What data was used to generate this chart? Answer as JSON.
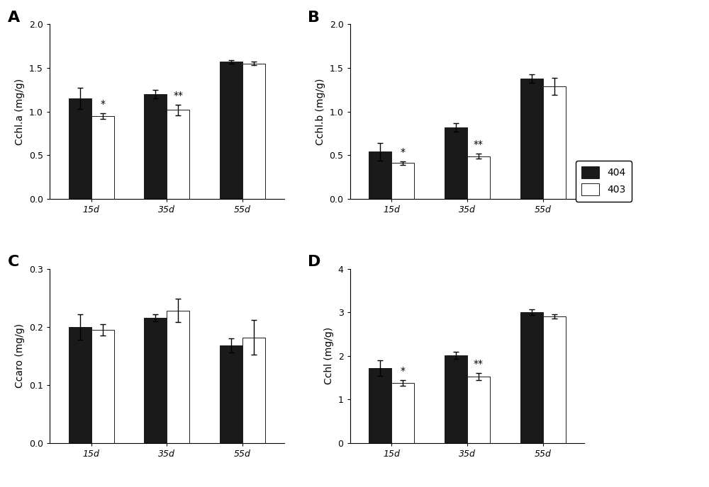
{
  "panels": [
    {
      "label": "A",
      "ylabel": "Cchl.a (mg/g)",
      "ylim": [
        0,
        2.0
      ],
      "yticks": [
        0.0,
        0.5,
        1.0,
        1.5,
        2.0
      ],
      "ytick_labels": [
        "0.0",
        "0.5",
        "1.0",
        "1.5",
        "2.0"
      ],
      "categories": [
        "15d",
        "35d",
        "55d"
      ],
      "dark_values": [
        1.15,
        1.2,
        1.57
      ],
      "dark_errors": [
        0.12,
        0.05,
        0.02
      ],
      "light_values": [
        0.95,
        1.02,
        1.55
      ],
      "light_errors": [
        0.03,
        0.06,
        0.02
      ],
      "significance": [
        "*",
        "**",
        ""
      ]
    },
    {
      "label": "B",
      "ylabel": "Cchl.b (mg/g)",
      "ylim": [
        0,
        2.0
      ],
      "yticks": [
        0.0,
        0.5,
        1.0,
        1.5,
        2.0
      ],
      "ytick_labels": [
        "0.0",
        "0.5",
        "1.0",
        "1.5",
        "2.0"
      ],
      "categories": [
        "15d",
        "35d",
        "55d"
      ],
      "dark_values": [
        0.54,
        0.82,
        1.38
      ],
      "dark_errors": [
        0.1,
        0.05,
        0.05
      ],
      "light_values": [
        0.41,
        0.49,
        1.29
      ],
      "light_errors": [
        0.02,
        0.03,
        0.1
      ],
      "significance": [
        "*",
        "**",
        ""
      ]
    },
    {
      "label": "C",
      "ylabel": "Ccaro (mg/g)",
      "ylim": [
        0,
        0.3
      ],
      "yticks": [
        0.0,
        0.1,
        0.2,
        0.3
      ],
      "ytick_labels": [
        "0.0",
        "0.1",
        "0.2",
        "0.3"
      ],
      "categories": [
        "15d",
        "35d",
        "55d"
      ],
      "dark_values": [
        0.2,
        0.215,
        0.168
      ],
      "dark_errors": [
        0.022,
        0.006,
        0.012
      ],
      "light_values": [
        0.195,
        0.228,
        0.182
      ],
      "light_errors": [
        0.01,
        0.02,
        0.03
      ],
      "significance": [
        "",
        "",
        ""
      ]
    },
    {
      "label": "D",
      "ylabel": "Cchl (mg/g)",
      "ylim": [
        0,
        4.0
      ],
      "yticks": [
        0,
        1,
        2,
        3,
        4
      ],
      "ytick_labels": [
        "0",
        "1",
        "2",
        "3",
        "4"
      ],
      "categories": [
        "15d",
        "35d",
        "55d"
      ],
      "dark_values": [
        1.72,
        2.02,
        3.0
      ],
      "dark_errors": [
        0.18,
        0.08,
        0.06
      ],
      "light_values": [
        1.38,
        1.52,
        2.9
      ],
      "light_errors": [
        0.06,
        0.08,
        0.05
      ],
      "significance": [
        "*",
        "**",
        ""
      ]
    }
  ],
  "legend_labels": [
    "404",
    "403"
  ],
  "dark_color": "#1a1a1a",
  "light_color": "#ffffff",
  "bar_edge_color": "#1a1a1a",
  "bar_width": 0.3,
  "sig_fontsize": 10,
  "panel_label_fontsize": 16,
  "tick_fontsize": 9,
  "axis_label_fontsize": 10,
  "legend_fontsize": 10,
  "capsize": 3
}
